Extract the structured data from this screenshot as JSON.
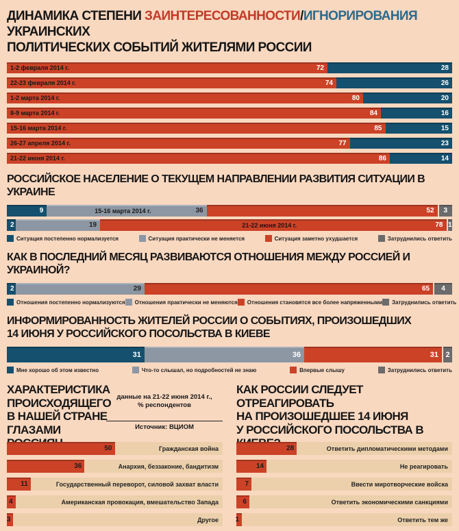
{
  "colors": {
    "background": "#f9d8c0",
    "bar_red": "#cb4227",
    "bar_navy": "#15506e",
    "bar_gray": "#8c97a3",
    "bar_darkgray": "#6b6b6b",
    "bar_track": "#ebd0ab",
    "title_red": "#c23a28",
    "title_blue": "#2c6a8c",
    "text": "#161616"
  },
  "header": {
    "black1": "ДИНАМИКА СТЕПЕНИ ",
    "red": "ЗАИНТЕРЕСОВАННОСТИ",
    "slash": "/",
    "blue": "ИГНОРИРОВАНИЯ",
    "black2": " УКРАИНСКИХ\nПОЛИТИЧЕСКИХ СОБЫТИЙ ЖИТЕЛЯМИ РОССИИ"
  },
  "section_titles": {
    "s2": "РОССИЙСКОЕ НАСЕЛЕНИЕ О ТЕКУЩЕМ НАПРАВЛЕНИИ РАЗВИТИЯ СИТУАЦИИ В УКРАИНЕ",
    "s3": "КАК В ПОСЛЕДНИЙ МЕСЯЦ РАЗВИВАЮТСЯ ОТНОШЕНИЯ МЕЖДУ РОССИЕЙ И УКРАИНОЙ?",
    "s4": "ИНФОРМИРОВАННОСТЬ ЖИТЕЛЕЙ РОССИИ О СОБЫТИЯХ, ПРОИЗОШЕДШИХ\n14 ИЮНЯ У РОССИЙСКОГО ПОСОЛЬСТВА В КИЕВЕ",
    "left": "ХАРАКТЕРИСТИКА\nПРОИСХОДЯЩЕГО\nВ НАШЕЙ СТРАНЕ ГЛАЗАМИ РОССИЯН",
    "right": "КАК РОССИИ СЛЕДУЕТ ОТРЕАГИРОВАТЬ\nНА ПРОИЗОШЕДШЕЕ 14 ИЮНЯ\nУ РОССИЙСКОГО ПОСОЛЬСТВА В КИЕВЕ?"
  },
  "note": {
    "text": "данные на 21-22 июня 2014 г.,\n% респондентов",
    "source": "Источник: ВЦИОМ"
  },
  "chart_data": [
    {
      "type": "bar",
      "orientation": "horizontal",
      "stacked": true,
      "unit": "%",
      "xlim": [
        0,
        100
      ],
      "title": "ДИНАМИКА СТЕПЕНИ ЗАИНТЕРЕСОВАННОСТИ/ИГНОРИРОВАНИЯ УКРАИНСКИХ ПОЛИТИЧЕСКИХ СОБЫТИЙ ЖИТЕЛЯМИ РОССИИ",
      "categories": [
        "1-2 февраля 2014 г.",
        "22-23 февраля 2014 г.",
        "1-2 марта 2014 г.",
        "8-9 марта 2014 г.",
        "15-16 марта 2014 г.",
        "26-27 апреля 2014 г.",
        "21-22 июня 2014 г."
      ],
      "series": [
        {
          "name": "заинтересованность",
          "color": "#cb4227",
          "values": [
            72,
            74,
            80,
            84,
            85,
            77,
            86
          ]
        },
        {
          "name": "игнорирование",
          "color": "#15506e",
          "values": [
            28,
            26,
            20,
            16,
            15,
            23,
            14
          ]
        }
      ]
    },
    {
      "type": "bar",
      "orientation": "horizontal",
      "stacked": true,
      "unit": "%",
      "xlim": [
        0,
        100
      ],
      "title": "РОССИЙСКОЕ НАСЕЛЕНИЕ О ТЕКУЩЕМ НАПРАВЛЕНИИ РАЗВИТИЯ СИТУАЦИИ В УКРАИНЕ",
      "categories": [
        "15-16 марта 2014 г.",
        "21-22 июня 2014 г."
      ],
      "series": [
        {
          "name": "Ситуация постепенно нормализуется",
          "color": "#15506e",
          "values": [
            9,
            2
          ]
        },
        {
          "name": "Ситуация практически не меняется",
          "color": "#8c97a3",
          "values": [
            36,
            19
          ]
        },
        {
          "name": "Ситуация заметно ухудшается",
          "color": "#cb4227",
          "values": [
            52,
            78
          ]
        },
        {
          "name": "Затруднились ответить",
          "color": "#6b6b6b",
          "values": [
            3,
            1
          ]
        }
      ],
      "legend_position": "bottom"
    },
    {
      "type": "bar",
      "orientation": "horizontal",
      "stacked": true,
      "unit": "%",
      "xlim": [
        0,
        100
      ],
      "title": "КАК В ПОСЛЕДНИЙ МЕСЯЦ РАЗВИВАЮТСЯ ОТНОШЕНИЯ МЕЖДУ РОССИЕЙ И УКРАИНОЙ?",
      "categories": [
        ""
      ],
      "series": [
        {
          "name": "Отношения постепенно нормализуются",
          "color": "#15506e",
          "values": [
            2
          ]
        },
        {
          "name": "Отношения практически не меняются",
          "color": "#8c97a3",
          "values": [
            29
          ]
        },
        {
          "name": "Отношения становятся все более напряженными",
          "color": "#cb4227",
          "values": [
            65
          ]
        },
        {
          "name": "Затруднились ответить",
          "color": "#6b6b6b",
          "values": [
            4
          ]
        }
      ],
      "legend_position": "bottom"
    },
    {
      "type": "bar",
      "orientation": "horizontal",
      "stacked": true,
      "unit": "%",
      "xlim": [
        0,
        100
      ],
      "title": "ИНФОРМИРОВАННОСТЬ ЖИТЕЛЕЙ РОССИИ О СОБЫТИЯХ, ПРОИЗОШЕДШИХ 14 ИЮНЯ У РОССИЙСКОГО ПОСОЛЬСТВА В КИЕВЕ",
      "categories": [
        ""
      ],
      "series": [
        {
          "name": "Мне хорошо об этом известно",
          "color": "#15506e",
          "values": [
            31
          ]
        },
        {
          "name": "Что-то слышал, но подробностей не знаю",
          "color": "#8c97a3",
          "values": [
            36
          ]
        },
        {
          "name": "Впервые слышу",
          "color": "#cb4227",
          "values": [
            31
          ]
        },
        {
          "name": "Затруднились ответить",
          "color": "#6b6b6b",
          "values": [
            2
          ]
        }
      ],
      "legend_position": "bottom"
    },
    {
      "type": "bar",
      "orientation": "horizontal",
      "unit": "% респондентов",
      "xlim": [
        0,
        100
      ],
      "title": "ХАРАКТЕРИСТИКА ПРОИСХОДЯЩЕГО В НАШЕЙ СТРАНЕ ГЛАЗАМИ РОССИЯН",
      "categories": [
        "Гражданская война",
        "Анархия, беззаконие, бандитизм",
        "Государственный переворот, силовой захват власти",
        "Американская провокация, вмешательство Запада",
        "Другое"
      ],
      "values": [
        50,
        36,
        11,
        4,
        3
      ]
    },
    {
      "type": "bar",
      "orientation": "horizontal",
      "unit": "% респондентов",
      "xlim": [
        0,
        100
      ],
      "title": "КАК РОССИИ СЛЕДУЕТ ОТРЕАГИРОВАТЬ НА ПРОИЗОШЕДШЕЕ 14 ИЮНЯ У РОССИЙСКОГО ПОСОЛЬСТВА В КИЕВЕ?",
      "categories": [
        "Ответить дипломатическими методами",
        "Не реагировать",
        "Ввести миротворческие войска",
        "Ответить экономическими санкциями",
        "Ответить тем же"
      ],
      "values": [
        28,
        14,
        7,
        6,
        1
      ]
    }
  ]
}
